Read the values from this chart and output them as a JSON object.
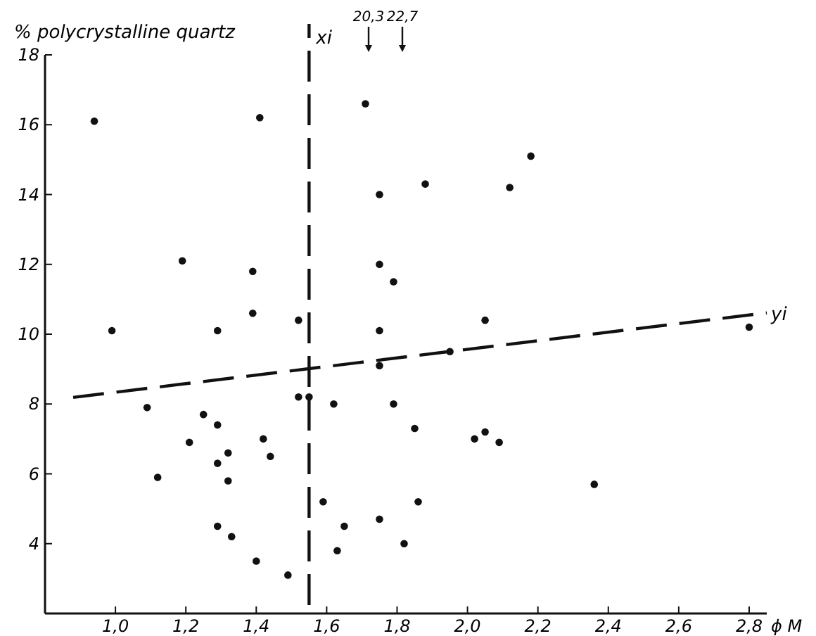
{
  "chart_data": {
    "type": "scatter",
    "ylabel": "% polycrystalline quartz",
    "xlabel": "ϕ M",
    "xlim": [
      0.8,
      2.85
    ],
    "ylim": [
      2,
      18
    ],
    "xticks": [
      {
        "value": 1.0,
        "label": "1,0"
      },
      {
        "value": 1.2,
        "label": "1,2"
      },
      {
        "value": 1.4,
        "label": "1,4"
      },
      {
        "value": 1.6,
        "label": "1,6"
      },
      {
        "value": 1.8,
        "label": "1,8"
      },
      {
        "value": 2.0,
        "label": "2,0"
      },
      {
        "value": 2.2,
        "label": "2,2"
      },
      {
        "value": 2.4,
        "label": "2,4"
      },
      {
        "value": 2.6,
        "label": "2,6"
      },
      {
        "value": 2.8,
        "label": "2,8"
      }
    ],
    "yticks": [
      4,
      6,
      8,
      10,
      12,
      14,
      16,
      18
    ],
    "marker": "circle",
    "grid": false,
    "legend": false,
    "series": [
      {
        "type": "scatter",
        "color": "#111111",
        "x": [
          0.94,
          1.41,
          1.71,
          1.75,
          1.19,
          1.39,
          1.75,
          1.79,
          1.39,
          1.52,
          2.18,
          1.88,
          2.12,
          2.05,
          0.99,
          1.29,
          1.75,
          1.75,
          1.09,
          1.52,
          1.55,
          1.62,
          1.79,
          1.25,
          1.29,
          1.21,
          1.42,
          1.32,
          1.44,
          1.29,
          1.12,
          1.32,
          1.85,
          1.59,
          1.86,
          1.29,
          1.65,
          1.75,
          1.33,
          1.63,
          1.82,
          1.4,
          1.49,
          1.95,
          2.8,
          2.02,
          2.05,
          2.09,
          2.36
        ],
        "values": [
          16.1,
          16.2,
          16.6,
          14.0,
          12.1,
          11.8,
          12.0,
          11.5,
          10.6,
          10.4,
          15.1,
          14.3,
          14.2,
          10.4,
          10.1,
          10.1,
          10.1,
          9.1,
          7.9,
          8.2,
          8.2,
          8.0,
          8.0,
          7.7,
          7.4,
          6.9,
          7.0,
          6.6,
          6.5,
          6.3,
          5.9,
          5.8,
          7.3,
          5.2,
          5.2,
          4.5,
          4.5,
          4.7,
          4.2,
          3.8,
          4.0,
          3.5,
          3.1,
          9.5,
          10.2,
          7.0,
          7.2,
          6.9,
          5.7
        ]
      },
      {
        "type": "line",
        "name": "yi",
        "color": "#111111",
        "line_style": "dashed",
        "x": [
          0.88,
          2.85
        ],
        "values": [
          8.19,
          10.61
        ],
        "marker": "none"
      }
    ],
    "ref_lines": [
      {
        "axis": "x",
        "value": 1.55,
        "label": "xi",
        "line_style": "dashed",
        "color": "#111111"
      }
    ],
    "annotations": [
      "20,3",
      "22,7"
    ]
  }
}
